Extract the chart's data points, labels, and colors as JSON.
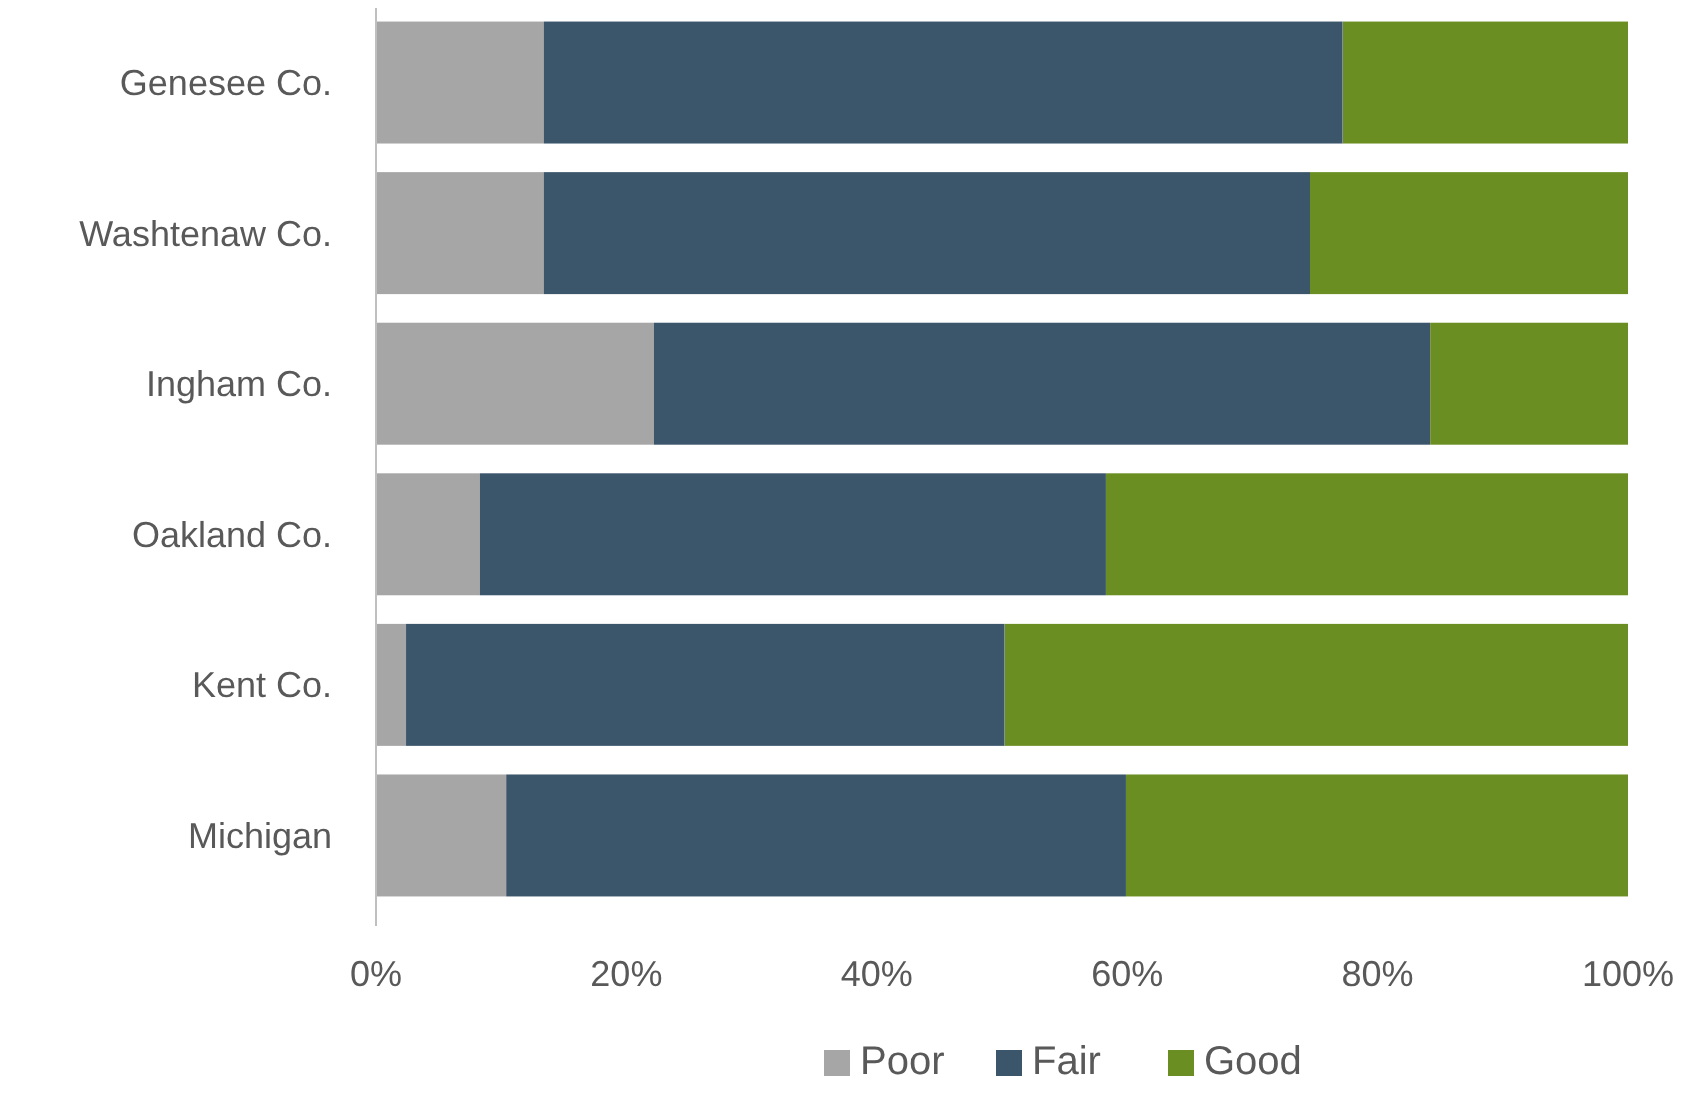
{
  "chart_data": {
    "type": "bar",
    "orientation": "horizontal",
    "stacked": true,
    "categories": [
      "Genesee Co.",
      "Washtenaw Co.",
      "Ingham Co.",
      "Oakland Co.",
      "Kent Co.",
      "Michigan"
    ],
    "series": [
      {
        "name": "Poor",
        "color": "#a6a6a6",
        "values": [
          13.4,
          13.4,
          22.2,
          8.3,
          2.4,
          10.4
        ]
      },
      {
        "name": "Fair",
        "color": "#3b556b",
        "values": [
          63.8,
          61.2,
          62,
          50,
          47.8,
          49.5
        ]
      },
      {
        "name": "Good",
        "color": "#6b8e23",
        "values": [
          22.8,
          25.4,
          15.8,
          41.7,
          49.8,
          40.1
        ]
      }
    ],
    "xlim": [
      0,
      100
    ],
    "xticks": [
      {
        "value": 0,
        "label": "0%"
      },
      {
        "value": 20,
        "label": "20%"
      },
      {
        "value": 40,
        "label": "40%"
      },
      {
        "value": 60,
        "label": "60%"
      },
      {
        "value": 80,
        "label": "80%"
      },
      {
        "value": 100,
        "label": "100%"
      }
    ],
    "grid": false,
    "legend": "bottom"
  }
}
